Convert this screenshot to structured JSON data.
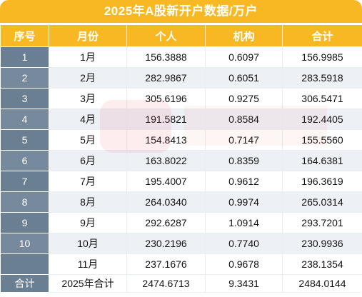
{
  "title": "2025年A股新开户数据/万户",
  "headers": [
    "序号",
    "月份",
    "个人",
    "机构",
    "合计"
  ],
  "rows": [
    {
      "idx": "1",
      "month": "1月",
      "personal": "156.3888",
      "institution": "0.6097",
      "total": "156.9985"
    },
    {
      "idx": "2",
      "month": "2月",
      "personal": "282.9867",
      "institution": "0.6051",
      "total": "283.5918"
    },
    {
      "idx": "3",
      "month": "3月",
      "personal": "305.6196",
      "institution": "0.9275",
      "total": "306.5471"
    },
    {
      "idx": "4",
      "month": "4月",
      "personal": "191.5821",
      "institution": "0.8584",
      "total": "192.4405"
    },
    {
      "idx": "5",
      "month": "5月",
      "personal": "154.8413",
      "institution": "0.7147",
      "total": "155.5560"
    },
    {
      "idx": "6",
      "month": "6月",
      "personal": "163.8022",
      "institution": "0.8359",
      "total": "164.6381"
    },
    {
      "idx": "7",
      "month": "7月",
      "personal": "195.4007",
      "institution": "0.9612",
      "total": "196.3619"
    },
    {
      "idx": "8",
      "month": "8月",
      "personal": "264.0340",
      "institution": "0.9974",
      "total": "265.0314"
    },
    {
      "idx": "9",
      "month": "9月",
      "personal": "292.6287",
      "institution": "1.0914",
      "total": "293.7201"
    },
    {
      "idx": "10",
      "month": "10月",
      "personal": "230.2196",
      "institution": "0.7740",
      "total": "230.9936"
    },
    {
      "idx": "",
      "month": "11月",
      "personal": "237.1676",
      "institution": "0.9678",
      "total": "238.1354"
    }
  ],
  "total_row": {
    "idx": "合计",
    "month": "2025年合计",
    "personal": "2474.6713",
    "institution": "9.3431",
    "total": "2484.0144"
  },
  "colors": {
    "header": "#f7b824",
    "index_col": "#6b7f93",
    "stripe": "#edf0f5"
  }
}
